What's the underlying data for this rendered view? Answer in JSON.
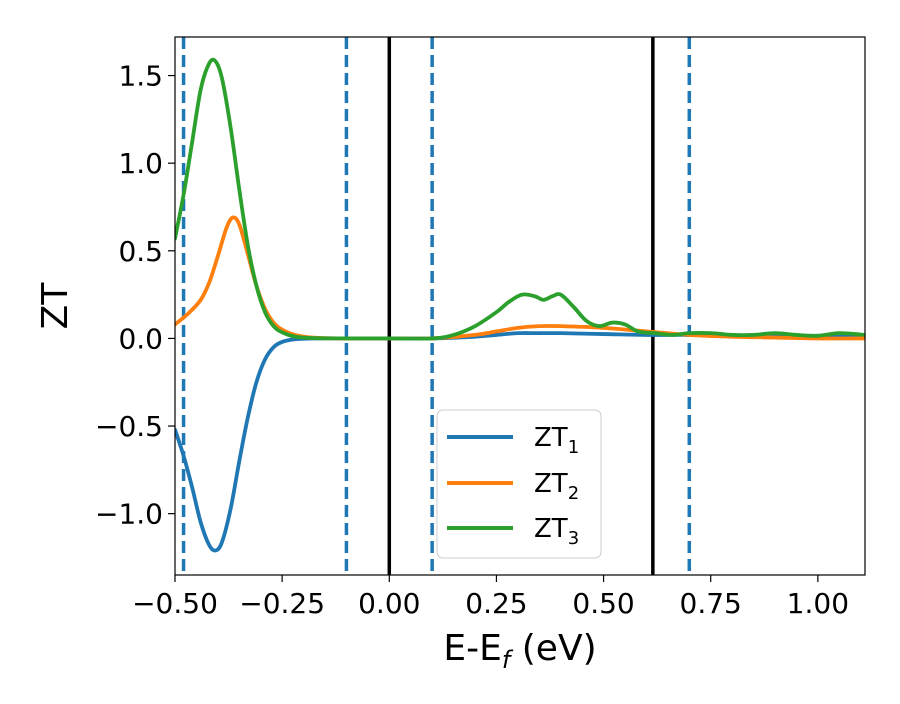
{
  "chart_data": {
    "type": "line",
    "title": "",
    "xlabel_main": "E-E",
    "xlabel_sub": "f",
    "xlabel_tail": " (eV)",
    "ylabel": "ZT",
    "xlim": [
      -0.5,
      1.11
    ],
    "ylim": [
      -1.35,
      1.72
    ],
    "grid": false,
    "legend_position": "lower-center",
    "x_ticks": [
      {
        "value": -0.5,
        "label": "−0.50"
      },
      {
        "value": -0.25,
        "label": "−0.25"
      },
      {
        "value": 0.0,
        "label": "0.00"
      },
      {
        "value": 0.25,
        "label": "0.25"
      },
      {
        "value": 0.5,
        "label": "0.50"
      },
      {
        "value": 0.75,
        "label": "0.75"
      },
      {
        "value": 1.0,
        "label": "1.00"
      }
    ],
    "y_ticks": [
      {
        "value": -1.0,
        "label": "−1.0"
      },
      {
        "value": -0.5,
        "label": "−0.5"
      },
      {
        "value": 0.0,
        "label": "0.0"
      },
      {
        "value": 0.5,
        "label": "0.5"
      },
      {
        "value": 1.0,
        "label": "1.0"
      },
      {
        "value": 1.5,
        "label": "1.5"
      }
    ],
    "solid_vlines": {
      "x": [
        0.0,
        0.615
      ],
      "color": "#000000"
    },
    "dashed_vlines": {
      "x": [
        -0.48,
        -0.1,
        0.1,
        0.7
      ],
      "color": "#1f77b4"
    },
    "series": [
      {
        "name_main": "ZT",
        "name_sub": "1",
        "color": "#1f77b4",
        "x": [
          -0.5,
          -0.48,
          -0.46,
          -0.44,
          -0.42,
          -0.405,
          -0.39,
          -0.37,
          -0.35,
          -0.33,
          -0.31,
          -0.29,
          -0.27,
          -0.25,
          -0.22,
          -0.18,
          -0.1,
          0.0,
          0.1,
          0.2,
          0.25,
          0.3,
          0.35,
          0.4,
          0.5,
          0.6,
          0.7,
          0.8,
          0.9,
          1.0,
          1.11
        ],
        "y": [
          -0.52,
          -0.67,
          -0.85,
          -1.05,
          -1.18,
          -1.21,
          -1.16,
          -0.97,
          -0.7,
          -0.45,
          -0.25,
          -0.12,
          -0.05,
          -0.02,
          -0.005,
          0.0,
          0.0,
          0.0,
          0.0,
          0.01,
          0.02,
          0.03,
          0.03,
          0.03,
          0.025,
          0.02,
          0.02,
          0.015,
          0.015,
          0.015,
          0.015
        ]
      },
      {
        "name_main": "ZT",
        "name_sub": "2",
        "color": "#ff7f0e",
        "x": [
          -0.5,
          -0.47,
          -0.44,
          -0.42,
          -0.4,
          -0.38,
          -0.365,
          -0.35,
          -0.33,
          -0.31,
          -0.29,
          -0.27,
          -0.25,
          -0.22,
          -0.18,
          -0.12,
          -0.05,
          0.0,
          0.1,
          0.2,
          0.25,
          0.3,
          0.35,
          0.4,
          0.5,
          0.6,
          0.7,
          0.8,
          0.9,
          1.0,
          1.11
        ],
        "y": [
          0.08,
          0.14,
          0.22,
          0.32,
          0.47,
          0.63,
          0.69,
          0.65,
          0.48,
          0.3,
          0.17,
          0.09,
          0.05,
          0.02,
          0.005,
          0.0,
          0.0,
          0.0,
          0.0,
          0.02,
          0.04,
          0.06,
          0.07,
          0.07,
          0.06,
          0.04,
          0.02,
          0.01,
          0.005,
          0.0,
          0.0
        ]
      },
      {
        "name_main": "ZT",
        "name_sub": "3",
        "color": "#2ca02c",
        "x": [
          -0.5,
          -0.48,
          -0.46,
          -0.44,
          -0.42,
          -0.405,
          -0.39,
          -0.37,
          -0.35,
          -0.33,
          -0.31,
          -0.29,
          -0.27,
          -0.25,
          -0.22,
          -0.18,
          -0.1,
          0.0,
          0.1,
          0.15,
          0.2,
          0.25,
          0.28,
          0.31,
          0.34,
          0.36,
          0.38,
          0.4,
          0.43,
          0.46,
          0.49,
          0.52,
          0.55,
          0.58,
          0.62,
          0.66,
          0.7,
          0.75,
          0.8,
          0.85,
          0.9,
          0.95,
          1.0,
          1.05,
          1.11
        ],
        "y": [
          0.57,
          0.82,
          1.12,
          1.42,
          1.57,
          1.58,
          1.48,
          1.2,
          0.85,
          0.53,
          0.3,
          0.15,
          0.07,
          0.035,
          0.01,
          0.002,
          0.0,
          0.0,
          0.0,
          0.02,
          0.07,
          0.15,
          0.21,
          0.25,
          0.24,
          0.22,
          0.24,
          0.25,
          0.18,
          0.1,
          0.07,
          0.09,
          0.08,
          0.04,
          0.03,
          0.02,
          0.03,
          0.03,
          0.02,
          0.02,
          0.03,
          0.02,
          0.015,
          0.03,
          0.02
        ]
      }
    ]
  }
}
